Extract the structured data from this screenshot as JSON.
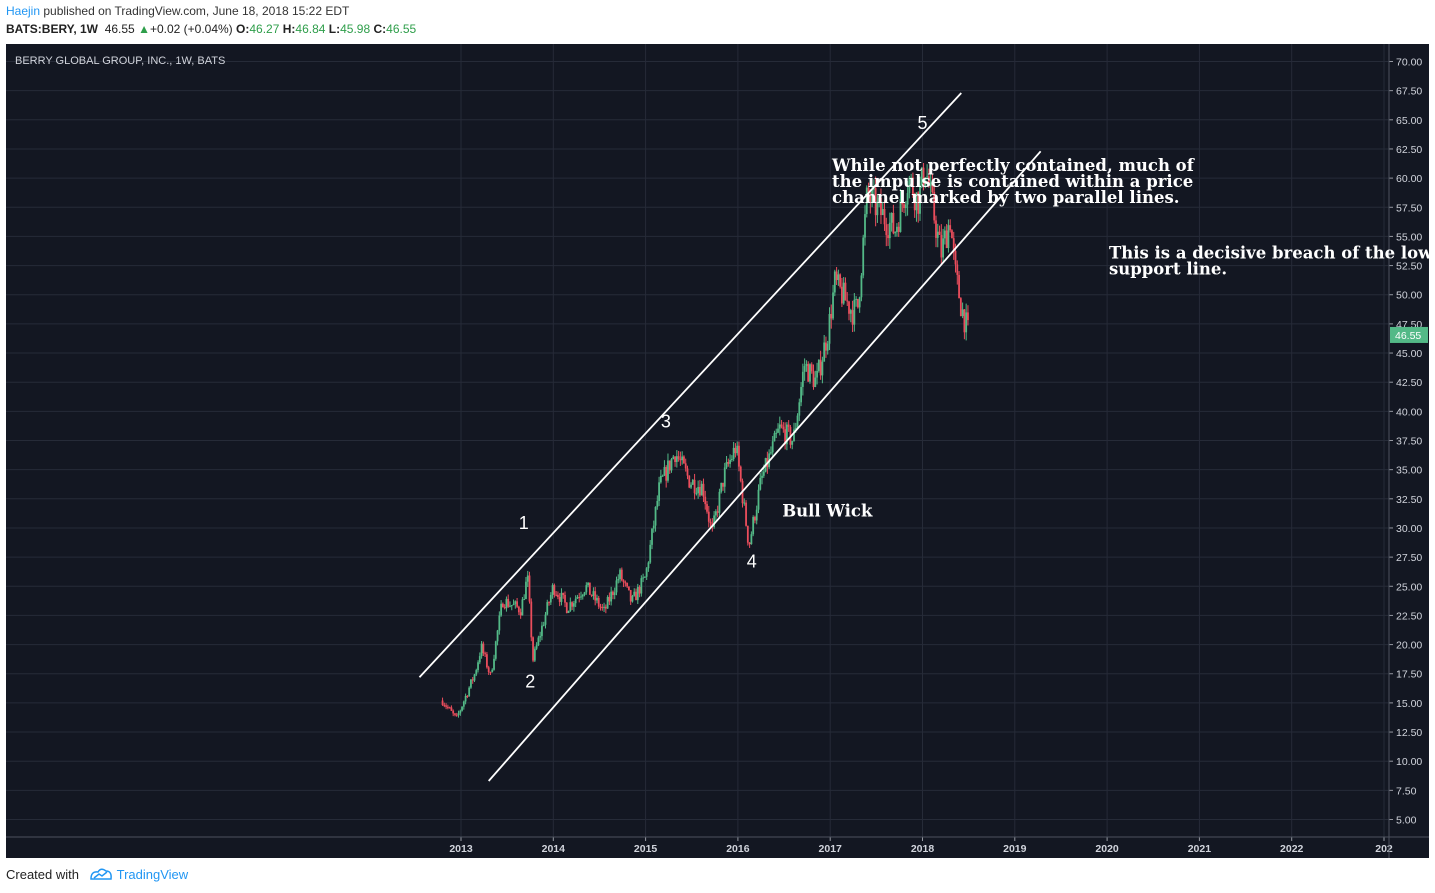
{
  "header": {
    "author": "Haejin",
    "published_text": "published on TradingView.com, June 18, 2018 15:22 EDT",
    "symbol": "BATS:BERY, 1W",
    "price": "46.55",
    "change_arrow": "▲",
    "change": "+0.02 (+0.04%)",
    "open_label": "O:",
    "open": "46.27",
    "high_label": "H:",
    "high": "46.84",
    "low_label": "L:",
    "low": "45.98",
    "close_label": "C:",
    "close": "46.55"
  },
  "footer": {
    "created_with": "Created with",
    "brand": "TradingView",
    "logo_icon": "tradingview-logo-icon"
  },
  "colors": {
    "background": "#131722",
    "grid": "#262b38",
    "up": "#53b987",
    "down": "#eb4d5c",
    "last_price": "#53b987"
  },
  "chart_data": {
    "type": "candlestick",
    "title": "BERRY GLOBAL GROUP, INC., 1W, BATS",
    "ylim": [
      3.5,
      71.5
    ],
    "y_ticks": [
      "5.00",
      "7.50",
      "10.00",
      "12.50",
      "15.00",
      "17.50",
      "20.00",
      "22.50",
      "25.00",
      "27.50",
      "30.00",
      "32.50",
      "35.00",
      "37.50",
      "40.00",
      "42.50",
      "45.00",
      "47.50",
      "50.00",
      "52.50",
      "55.00",
      "57.50",
      "60.00",
      "62.50",
      "65.00",
      "67.50",
      "70.00"
    ],
    "x_ticks": [
      "2013",
      "2014",
      "2015",
      "2016",
      "2017",
      "2018",
      "2019",
      "2020",
      "2021",
      "2022",
      "202"
    ],
    "last_price": "46.55",
    "price_path": [
      {
        "t": 2012.8,
        "v": 15.2
      },
      {
        "t": 2012.95,
        "v": 13.6
      },
      {
        "t": 2013.15,
        "v": 17.5
      },
      {
        "t": 2013.22,
        "v": 19.8
      },
      {
        "t": 2013.32,
        "v": 17.3
      },
      {
        "t": 2013.45,
        "v": 23.8
      },
      {
        "t": 2013.65,
        "v": 23.0
      },
      {
        "t": 2013.72,
        "v": 25.8
      },
      {
        "t": 2013.78,
        "v": 18.7
      },
      {
        "t": 2014.0,
        "v": 25.0
      },
      {
        "t": 2014.15,
        "v": 23.2
      },
      {
        "t": 2014.35,
        "v": 25.0
      },
      {
        "t": 2014.55,
        "v": 22.8
      },
      {
        "t": 2014.72,
        "v": 26.0
      },
      {
        "t": 2014.85,
        "v": 23.6
      },
      {
        "t": 2015.0,
        "v": 25.8
      },
      {
        "t": 2015.15,
        "v": 33.5
      },
      {
        "t": 2015.32,
        "v": 36.5
      },
      {
        "t": 2015.48,
        "v": 34.0
      },
      {
        "t": 2015.62,
        "v": 33.5
      },
      {
        "t": 2015.72,
        "v": 29.5
      },
      {
        "t": 2015.85,
        "v": 34.5
      },
      {
        "t": 2015.98,
        "v": 37.0
      },
      {
        "t": 2016.12,
        "v": 28.5
      },
      {
        "t": 2016.25,
        "v": 34.0
      },
      {
        "t": 2016.45,
        "v": 38.5
      },
      {
        "t": 2016.6,
        "v": 37.5
      },
      {
        "t": 2016.72,
        "v": 44.0
      },
      {
        "t": 2016.85,
        "v": 42.5
      },
      {
        "t": 2016.98,
        "v": 47.0
      },
      {
        "t": 2017.05,
        "v": 51.0
      },
      {
        "t": 2017.25,
        "v": 48.5
      },
      {
        "t": 2017.3,
        "v": 49.0
      },
      {
        "t": 2017.4,
        "v": 58.5
      },
      {
        "t": 2017.55,
        "v": 57.0
      },
      {
        "t": 2017.7,
        "v": 55.5
      },
      {
        "t": 2017.85,
        "v": 60.0
      },
      {
        "t": 2017.95,
        "v": 58.0
      },
      {
        "t": 2018.03,
        "v": 61.0
      },
      {
        "t": 2018.12,
        "v": 57.0
      },
      {
        "t": 2018.2,
        "v": 53.5
      },
      {
        "t": 2018.3,
        "v": 56.5
      },
      {
        "t": 2018.35,
        "v": 52.0
      },
      {
        "t": 2018.42,
        "v": 49.0
      },
      {
        "t": 2018.5,
        "v": 46.55
      }
    ],
    "channel": {
      "upper": [
        {
          "t": 2012.55,
          "v": 17.2
        },
        {
          "t": 2018.42,
          "v": 67.3
        }
      ],
      "lower": [
        {
          "t": 2013.3,
          "v": 8.3
        },
        {
          "t": 2019.28,
          "v": 62.3
        }
      ]
    },
    "wave_labels": [
      {
        "text": "1",
        "t": 2013.68,
        "v": 29.9
      },
      {
        "text": "2",
        "t": 2013.75,
        "v": 16.3
      },
      {
        "text": "3",
        "t": 2015.22,
        "v": 38.6
      },
      {
        "text": "4",
        "t": 2016.15,
        "v": 26.6
      },
      {
        "text": "5",
        "t": 2018.0,
        "v": 64.2
      }
    ],
    "annotations": [
      {
        "lines": [
          "While not perfectly contained, much of",
          "the impulse is contained within a price",
          "channel marked by two parallel lines."
        ],
        "t": 2017.02,
        "v": 60.6
      },
      {
        "lines": [
          "This is a decisive breach of the lower",
          "support line."
        ],
        "t": 2020.02,
        "v": 53.1
      },
      {
        "lines": [
          "Bull Wick"
        ],
        "t": 2016.48,
        "v": 31.0
      }
    ]
  }
}
